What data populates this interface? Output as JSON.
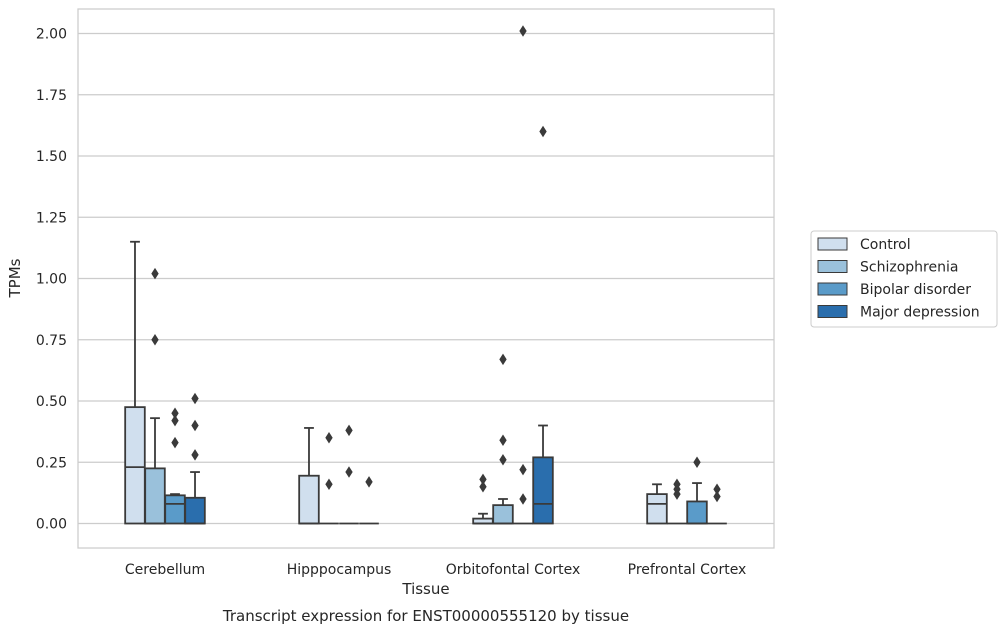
{
  "chart_data": {
    "type": "box",
    "caption": "Transcript expression for ENST00000555120 by tissue",
    "xlabel": "Tissue",
    "ylabel": "TPMs",
    "ylim": [
      -0.1,
      2.1
    ],
    "yticks": [
      0.0,
      0.25,
      0.5,
      0.75,
      1.0,
      1.25,
      1.5,
      1.75,
      2.0
    ],
    "ytick_labels": [
      "0.00",
      "0.25",
      "0.50",
      "0.75",
      "1.00",
      "1.25",
      "1.50",
      "1.75",
      "2.00"
    ],
    "grid": "horizontal",
    "legend_position": "right",
    "categories": [
      "Cerebellum",
      "Hipppocampus",
      "Orbitofontal Cortex",
      "Prefrontal Cortex"
    ],
    "series": [
      {
        "name": "Control",
        "color": "#d0dfee",
        "boxes": [
          {
            "q1": 0.0,
            "median": 0.23,
            "q3": 0.475,
            "whisker_low": 0.0,
            "whisker_high": 1.15,
            "outliers": []
          },
          {
            "q1": 0.0,
            "median": 0.0,
            "q3": 0.195,
            "whisker_low": 0.0,
            "whisker_high": 0.39,
            "outliers": []
          },
          {
            "q1": 0.0,
            "median": 0.0,
            "q3": 0.02,
            "whisker_low": 0.0,
            "whisker_high": 0.04,
            "outliers": [
              0.15,
              0.18
            ]
          },
          {
            "q1": 0.0,
            "median": 0.08,
            "q3": 0.12,
            "whisker_low": 0.0,
            "whisker_high": 0.16,
            "outliers": []
          }
        ]
      },
      {
        "name": "Schizophrenia",
        "color": "#9ac1db",
        "boxes": [
          {
            "q1": 0.0,
            "median": 0.0,
            "q3": 0.225,
            "whisker_low": 0.0,
            "whisker_high": 0.43,
            "outliers": [
              0.75,
              1.02
            ]
          },
          {
            "q1": 0.0,
            "median": 0.0,
            "q3": 0.0,
            "whisker_low": 0.0,
            "whisker_high": 0.0,
            "outliers": [
              0.16,
              0.35
            ]
          },
          {
            "q1": 0.0,
            "median": 0.0,
            "q3": 0.075,
            "whisker_low": 0.0,
            "whisker_high": 0.1,
            "outliers": [
              0.26,
              0.34,
              0.67
            ]
          },
          {
            "q1": 0.0,
            "median": 0.0,
            "q3": 0.0,
            "whisker_low": 0.0,
            "whisker_high": 0.0,
            "outliers": [
              0.12,
              0.14,
              0.16
            ]
          }
        ]
      },
      {
        "name": "Bipolar disorder",
        "color": "#5a9bc9",
        "boxes": [
          {
            "q1": 0.0,
            "median": 0.08,
            "q3": 0.115,
            "whisker_low": 0.0,
            "whisker_high": 0.12,
            "outliers": [
              0.33,
              0.42,
              0.45
            ]
          },
          {
            "q1": 0.0,
            "median": 0.0,
            "q3": 0.0,
            "whisker_low": 0.0,
            "whisker_high": 0.0,
            "outliers": [
              0.21,
              0.38
            ]
          },
          {
            "q1": 0.0,
            "median": 0.0,
            "q3": 0.0,
            "whisker_low": 0.0,
            "whisker_high": 0.0,
            "outliers": [
              0.1,
              0.22,
              2.01
            ]
          },
          {
            "q1": 0.0,
            "median": 0.0,
            "q3": 0.09,
            "whisker_low": 0.0,
            "whisker_high": 0.165,
            "outliers": [
              0.25
            ]
          }
        ]
      },
      {
        "name": "Major depression",
        "color": "#2a6ead",
        "boxes": [
          {
            "q1": 0.0,
            "median": 0.0,
            "q3": 0.105,
            "whisker_low": 0.0,
            "whisker_high": 0.21,
            "outliers": [
              0.28,
              0.4,
              0.51
            ]
          },
          {
            "q1": 0.0,
            "median": 0.0,
            "q3": 0.0,
            "whisker_low": 0.0,
            "whisker_high": 0.0,
            "outliers": [
              0.17
            ]
          },
          {
            "q1": 0.0,
            "median": 0.08,
            "q3": 0.27,
            "whisker_low": 0.0,
            "whisker_high": 0.4,
            "outliers": [
              1.6
            ]
          },
          {
            "q1": 0.0,
            "median": 0.0,
            "q3": 0.0,
            "whisker_low": 0.0,
            "whisker_high": 0.0,
            "outliers": [
              0.11,
              0.14
            ]
          }
        ]
      }
    ]
  }
}
